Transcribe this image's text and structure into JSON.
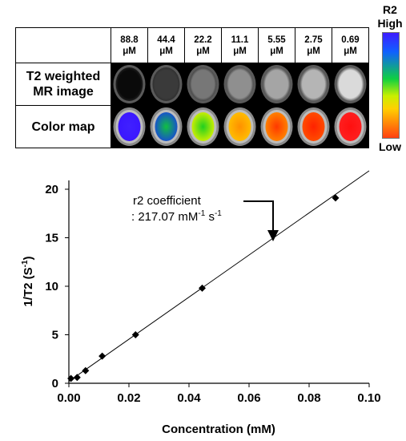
{
  "legend": {
    "title": "R2",
    "high": "High",
    "low": "Low"
  },
  "table": {
    "concentrations": [
      {
        "value": "88.8",
        "unit": "μM"
      },
      {
        "value": "44.4",
        "unit": "μM"
      },
      {
        "value": "22.2",
        "unit": "μM"
      },
      {
        "value": "11.1",
        "unit": "μM"
      },
      {
        "value": "5.55",
        "unit": "μM"
      },
      {
        "value": "2.75",
        "unit": "μM"
      },
      {
        "value": "0.69",
        "unit": "μM"
      }
    ],
    "row1_label_line1": "T2 weighted",
    "row1_label_line2": "MR image",
    "row2_label": "Color map",
    "t2_gray": [
      "#0a0a0a",
      "#3a3a3a",
      "#777777",
      "#8f8f8f",
      "#a5a5a5",
      "#b5b5b5",
      "#dadada"
    ],
    "colormap_colors": [
      [
        "#3a16ff",
        "#4020ff"
      ],
      [
        "#1848d8",
        "#10c040"
      ],
      [
        "#d8f000",
        "#20d020"
      ],
      [
        "#ffc000",
        "#ff9000"
      ],
      [
        "#ff8800",
        "#ff3800"
      ],
      [
        "#ff5000",
        "#ff2200"
      ],
      [
        "#ff2020",
        "#ff1010"
      ]
    ]
  },
  "chart_data": {
    "type": "scatter",
    "xlabel": "Concentration (mM)",
    "ylabel": "1/T2 (S-1)",
    "xlim": [
      0,
      0.1
    ],
    "ylim": [
      0,
      22
    ],
    "xticks": [
      "0.00",
      "0.02",
      "0.04",
      "0.06",
      "0.08",
      "0.10"
    ],
    "yticks": [
      "0",
      "5",
      "10",
      "15",
      "20"
    ],
    "points": [
      {
        "x": 0.00069,
        "y": 0.5
      },
      {
        "x": 0.00275,
        "y": 0.6
      },
      {
        "x": 0.00555,
        "y": 1.3
      },
      {
        "x": 0.0111,
        "y": 2.8
      },
      {
        "x": 0.0222,
        "y": 5.0
      },
      {
        "x": 0.0444,
        "y": 9.8
      },
      {
        "x": 0.0888,
        "y": 19.1
      }
    ],
    "fit_line": {
      "x": [
        0.0,
        0.1
      ],
      "y": [
        0.2,
        21.9
      ]
    },
    "annotation_line1": "r2 coefficient",
    "annotation_line2": ": 217.07 mM-1 s-1",
    "grid": false,
    "marker_color": "#000000"
  }
}
